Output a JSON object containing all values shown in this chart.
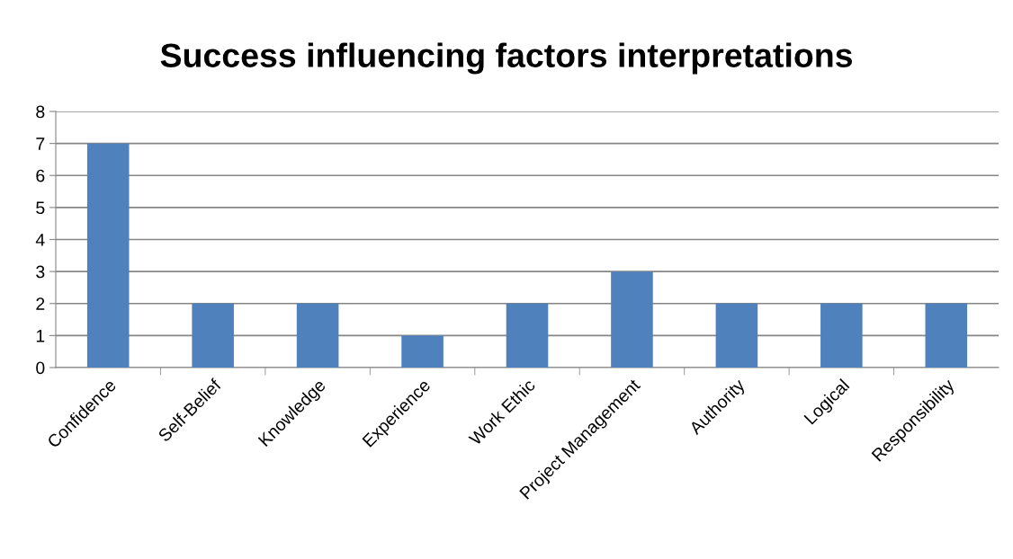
{
  "chart_data": {
    "type": "bar",
    "title": "Success influencing factors interpretations",
    "categories": [
      "Confidence",
      "Self-Belief",
      "Knowledge",
      "Experience",
      "Work Ethic",
      "Project Management",
      "Authority",
      "Logical",
      "Responsibility"
    ],
    "values": [
      7,
      2,
      2,
      1,
      2,
      3,
      2,
      2,
      2
    ],
    "color": "#4f81bd",
    "ylim": [
      0,
      8
    ],
    "yticks": [
      0,
      1,
      2,
      3,
      4,
      5,
      6,
      7,
      8
    ],
    "grid": "y",
    "legend": false
  }
}
